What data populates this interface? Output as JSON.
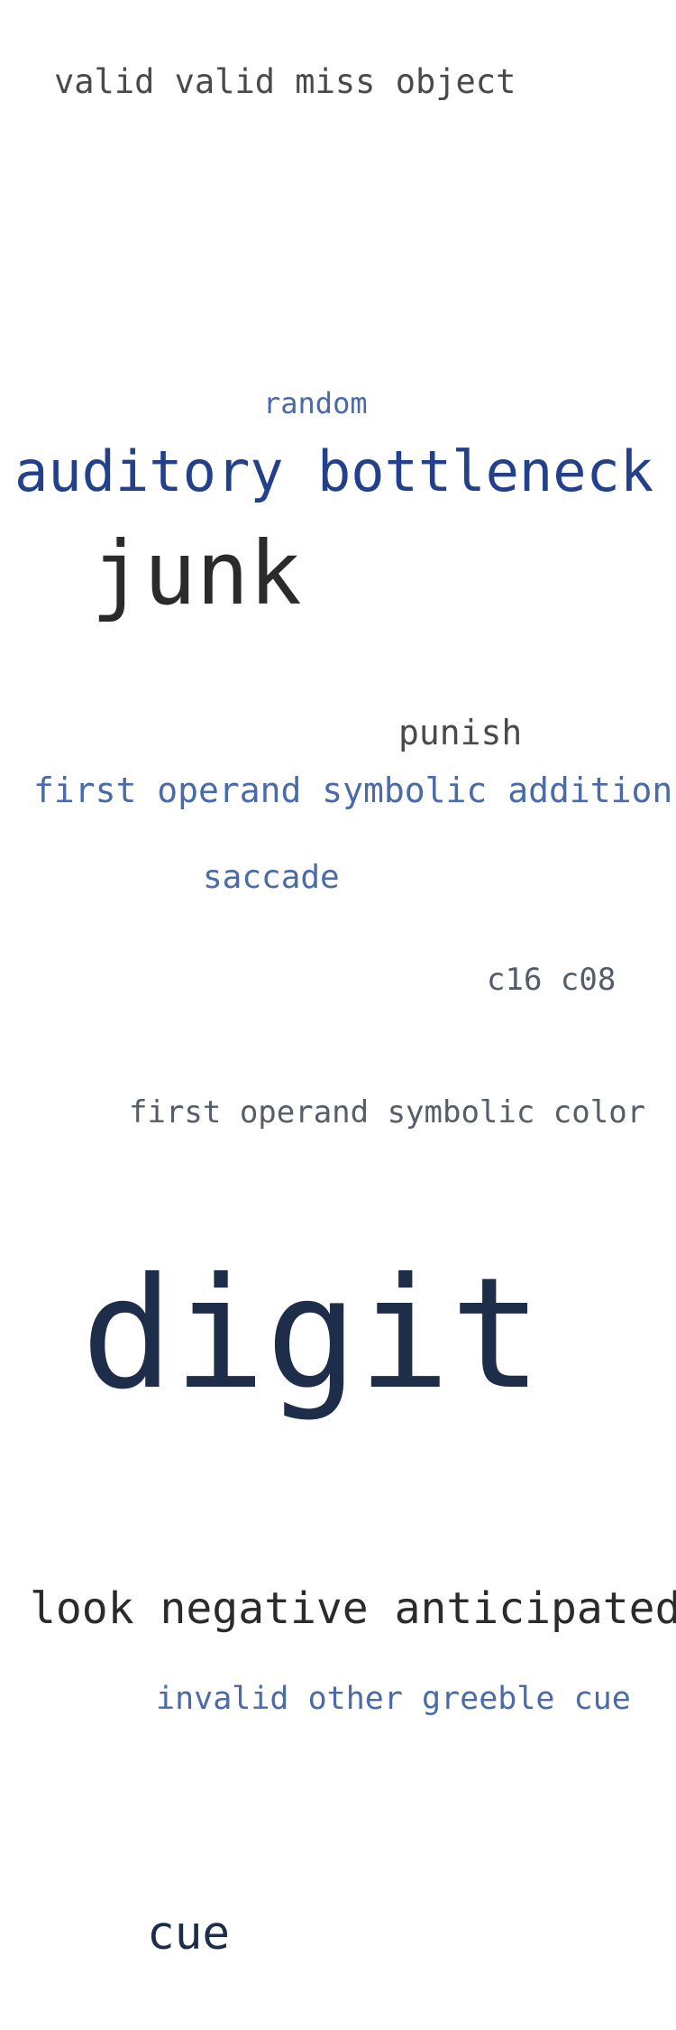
{
  "colors": {
    "background": "#ffffff",
    "dark_gray": "#4a4a4a",
    "medium_blue": "#4a6aa8",
    "dark_blue": "#22418a",
    "near_black": "#2b2b2b",
    "slate_gray": "#555d69",
    "navy": "#1e2d4a"
  },
  "words": [
    {
      "text": "valid valid miss object",
      "color": "#4a4a4a"
    },
    {
      "text": "random",
      "color": "#4a6aa8"
    },
    {
      "text": "auditory bottleneck",
      "color": "#22418a"
    },
    {
      "text": "junk",
      "color": "#2b2b2b"
    },
    {
      "text": "punish",
      "color": "#4a4a4a"
    },
    {
      "text": "first operand symbolic addition",
      "color": "#4a6aa8"
    },
    {
      "text": "saccade",
      "color": "#4a6aa8"
    },
    {
      "text": "c16 c08",
      "color": "#555d69"
    },
    {
      "text": "first operand symbolic color",
      "color": "#555d69"
    },
    {
      "text": "digit",
      "color": "#1e2d4a"
    },
    {
      "text": "look negative anticipated",
      "color": "#2b2b2b"
    },
    {
      "text": "invalid other greeble cue",
      "color": "#4a6aa8"
    },
    {
      "text": "cue",
      "color": "#1e2d4a"
    }
  ]
}
